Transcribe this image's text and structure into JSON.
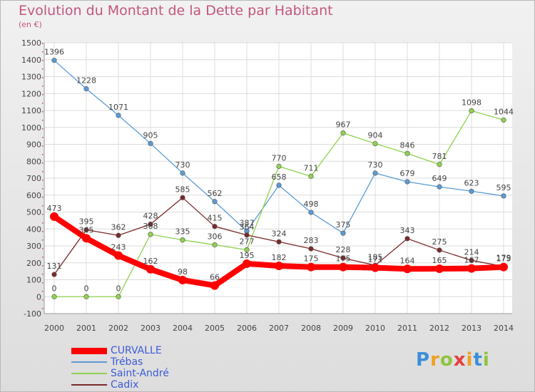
{
  "chart_data": {
    "type": "line",
    "title": "Evolution du Montant de la Dette par Habitant",
    "subtitle": "(en €)",
    "x": [
      "2000",
      "2001",
      "2002",
      "2003",
      "2004",
      "2005",
      "2006",
      "2007",
      "2008",
      "2009",
      "2010",
      "2011",
      "2012",
      "2013",
      "2014"
    ],
    "ylim": [
      -100,
      1500
    ],
    "yticks": [
      -100,
      0,
      100,
      200,
      300,
      400,
      500,
      600,
      700,
      800,
      900,
      1000,
      1100,
      1200,
      1300,
      1400,
      1500
    ],
    "grid": true,
    "legend_position": "bottom-left",
    "series": [
      {
        "name": "CURVALLE",
        "color": "#ff0000",
        "values": [
          473,
          345,
          243,
          162,
          98,
          66,
          195,
          182,
          175,
          175,
          171,
          164,
          165,
          167,
          175
        ]
      },
      {
        "name": "Trébas",
        "color": "#5b9bd5",
        "values": [
          1396,
          1228,
          1071,
          905,
          730,
          562,
          387,
          658,
          498,
          375,
          730,
          679,
          649,
          623,
          595
        ]
      },
      {
        "name": "Saint-André",
        "color": "#8fd14f",
        "values": [
          0,
          0,
          0,
          368,
          335,
          306,
          277,
          770,
          711,
          967,
          904,
          846,
          781,
          1098,
          1044
        ]
      },
      {
        "name": "Cadix",
        "color": "#7a2a2a",
        "values": [
          131,
          395,
          362,
          428,
          585,
          415,
          364,
          324,
          283,
          228,
          185,
          343,
          275,
          214,
          179
        ]
      }
    ]
  },
  "logo": {
    "letters": [
      "P",
      "r",
      "o",
      "x",
      "i",
      "t",
      "i"
    ],
    "colors": [
      "#3b8fd9",
      "#f0a020",
      "#8fc43f",
      "#e63e3e",
      "#f0a020",
      "#3b8fd9",
      "#8fc43f"
    ]
  }
}
